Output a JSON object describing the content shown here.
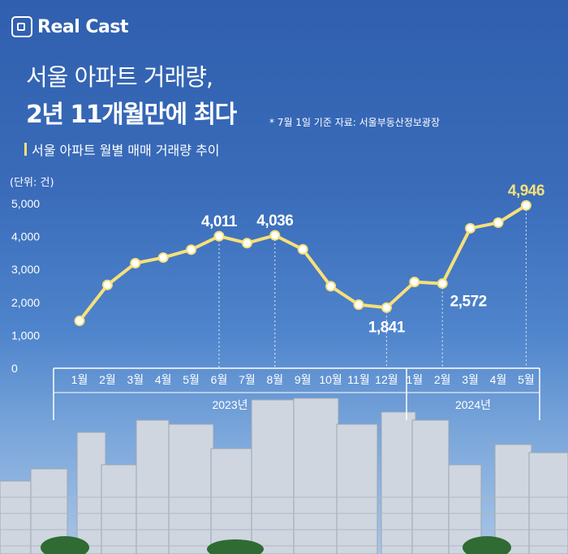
{
  "logo": {
    "text": "Real Cast"
  },
  "header": {
    "title_line1": "서울 아파트 거래량,",
    "title_line2": "2년 11개월만에 최다",
    "note": "* 7월 1일 기준  자료: 서울부동산정보광장",
    "subtitle": "서울 아파트 월별 매매 거래량 추이"
  },
  "colors": {
    "line": "#f7e07a",
    "highlight_label": "#f7e07a",
    "text": "#ffffff",
    "background": "#3a6cba"
  },
  "chart_data": {
    "type": "line",
    "title": "서울 아파트 월별 매매 거래량 추이",
    "unit_label": "(단위: 건)",
    "x": [
      "1월",
      "2월",
      "3월",
      "4월",
      "5월",
      "6월",
      "7월",
      "8월",
      "9월",
      "10월",
      "11월",
      "12월",
      "1월",
      "2월",
      "3월",
      "4월",
      "5월"
    ],
    "year_groups": [
      {
        "label": "2023년",
        "count": 12
      },
      {
        "label": "2024년",
        "count": 5
      }
    ],
    "series": [
      {
        "values": [
          1440,
          2530,
          3190,
          3360,
          3600,
          4011,
          3800,
          4036,
          3610,
          2490,
          1930,
          1841,
          2620,
          2572,
          4250,
          4420,
          4946
        ]
      }
    ],
    "ylim": [
      0,
      5000
    ],
    "yticks": [
      "0",
      "1,000",
      "2,000",
      "3,000",
      "4,000",
      "5,000"
    ],
    "data_labels": [
      {
        "index": 5,
        "text": "4,011"
      },
      {
        "index": 7,
        "text": "4,036"
      },
      {
        "index": 11,
        "text": "1,841"
      },
      {
        "index": 13,
        "text": "2,572"
      },
      {
        "index": 16,
        "text": "4,946",
        "highlight": true
      }
    ],
    "grid": false,
    "legend": "none"
  }
}
